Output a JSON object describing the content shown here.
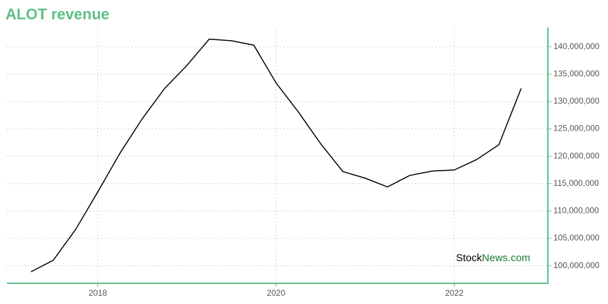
{
  "chart_data": {
    "type": "line",
    "title": "ALOT revenue",
    "watermark": [
      "Stock",
      "News.com"
    ],
    "x": [
      2017.25,
      2017.5,
      2017.75,
      2018,
      2018.25,
      2018.5,
      2018.75,
      2019,
      2019.25,
      2019.5,
      2019.75,
      2020,
      2020.25,
      2020.5,
      2020.75,
      2021,
      2021.25,
      2021.5,
      2021.75,
      2022,
      2022.25,
      2022.5,
      2022.75
    ],
    "series": [
      {
        "name": "ALOT revenue",
        "color": "#000000",
        "values": [
          98900000,
          101000000,
          106600000,
          113500000,
          120600000,
          126900000,
          132400000,
          136600000,
          141400000,
          141100000,
          140300000,
          133400000,
          128100000,
          122300000,
          117200000,
          116000000,
          114400000,
          116500000,
          117300000,
          117500000,
          119400000,
          122100000,
          132400000
        ]
      }
    ],
    "xlim": [
      2016.98,
      2023.05
    ],
    "xticks": [
      2018,
      2020,
      2022
    ],
    "ylim": [
      96800000,
      143500000
    ],
    "yticks": [
      {
        "value": 100000000,
        "label": "100,000,000"
      },
      {
        "value": 105000000,
        "label": "105,000,000"
      },
      {
        "value": 110000000,
        "label": "110,000,000"
      },
      {
        "value": 115000000,
        "label": "115,000,000"
      },
      {
        "value": 120000000,
        "label": "120,000,000"
      },
      {
        "value": 125000000,
        "label": "125,000,000"
      },
      {
        "value": 130000000,
        "label": "130,000,000"
      },
      {
        "value": 135000000,
        "label": "135,000,000"
      },
      {
        "value": 140000000,
        "label": "140,000,000"
      }
    ],
    "grid": true,
    "axis_color": "#5cbf85"
  }
}
